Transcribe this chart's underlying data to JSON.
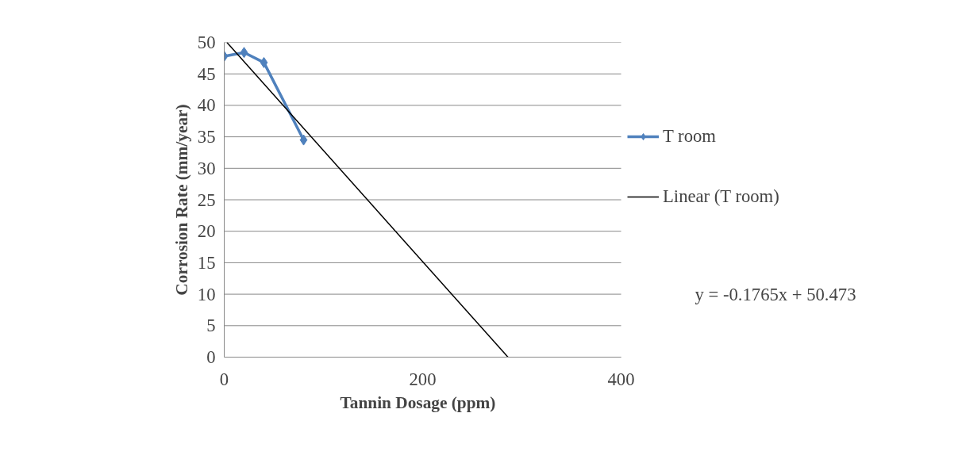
{
  "chart_data": {
    "type": "line",
    "xlabel": "Tannin Dosage (ppm)",
    "ylabel": "Corrosion Rate (mm/year)",
    "xlim": [
      0,
      400
    ],
    "xticks": [
      0,
      200,
      400
    ],
    "ylim": [
      0,
      50
    ],
    "yticks": [
      0,
      5,
      10,
      15,
      20,
      25,
      30,
      35,
      40,
      45,
      50
    ],
    "grid": "y",
    "legend": "right",
    "series": [
      {
        "name": "T room",
        "color": "#4f81bd",
        "x": [
          0,
          20,
          40,
          80
        ],
        "values": [
          47.8,
          48.4,
          46.8,
          34.5
        ],
        "marker": "diamond"
      },
      {
        "name": "Linear (T room)",
        "color": "#000000",
        "x": [
          2.7,
          286
        ],
        "values": [
          50,
          0
        ],
        "marker": "none"
      }
    ],
    "annotations": [
      "y = -0.1765x + 50.473"
    ]
  }
}
